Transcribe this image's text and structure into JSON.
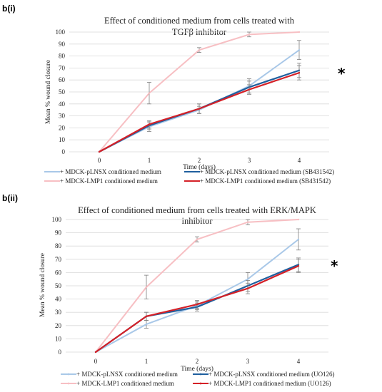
{
  "chart_data": [
    {
      "panel_label": "b(i)",
      "type": "line",
      "title": [
        "Effect of conditioned medium from cells treated with",
        "TGFβ inhibitor"
      ],
      "xlabel": "Time (days)",
      "ylabel": "Mean % wound closure",
      "x": [
        0,
        1,
        2,
        3,
        4
      ],
      "xlim": [
        0,
        4
      ],
      "ylim": [
        0,
        100
      ],
      "yticks": [
        0,
        10,
        20,
        30,
        40,
        50,
        60,
        70,
        80,
        90,
        100
      ],
      "grid": "horizontal",
      "annotation": "*",
      "legend_position": "bottom",
      "series": [
        {
          "name": "MDCK-pLNSX conditioned medium",
          "color": "#a9c8e8",
          "values": [
            0,
            21,
            35,
            55,
            85
          ],
          "errors": [
            0,
            4,
            3,
            6,
            8
          ]
        },
        {
          "name": "MDCK-LMP1 conditioned medium",
          "color": "#f7bfc3",
          "values": [
            0,
            49,
            85,
            98,
            100
          ],
          "errors": [
            0,
            9,
            2,
            2,
            0
          ]
        },
        {
          "name": "MDCK-pLNSX conditioned medium (SB431542)",
          "color": "#1f5f9e",
          "values": [
            0,
            22,
            36,
            54,
            68
          ],
          "errors": [
            0,
            3,
            4,
            5,
            6
          ]
        },
        {
          "name": "MDCK-LMP1 conditioned medium (SB431542)",
          "color": "#d42027",
          "values": [
            0,
            23,
            36,
            52,
            66
          ],
          "errors": [
            0,
            3,
            4,
            4,
            6
          ]
        }
      ]
    },
    {
      "panel_label": "b(ii)",
      "type": "line",
      "title": [
        "Effect of conditioned medium from cells treated with ERK/MAPK",
        "inhibitor"
      ],
      "xlabel": "Time (days)",
      "ylabel": "Mean % wound closure",
      "x": [
        0,
        1,
        2,
        3,
        4
      ],
      "xlim": [
        0,
        4
      ],
      "ylim": [
        0,
        100
      ],
      "yticks": [
        0,
        10,
        20,
        30,
        40,
        50,
        60,
        70,
        80,
        90,
        100
      ],
      "grid": "horizontal",
      "annotation": "*",
      "legend_position": "bottom",
      "series": [
        {
          "name": "MDCK-pLNSX conditioned medium",
          "color": "#a9c8e8",
          "values": [
            0,
            21,
            35,
            55,
            85
          ],
          "errors": [
            0,
            3,
            3,
            5,
            8
          ]
        },
        {
          "name": "MDCK-LMP1 conditioned medium",
          "color": "#f7bfc3",
          "values": [
            0,
            49,
            85,
            98,
            100
          ],
          "errors": [
            0,
            9,
            2,
            2,
            0
          ]
        },
        {
          "name": "MDCK-pLNSX conditioned medium (UO126)",
          "color": "#1f5f9e",
          "values": [
            0,
            27,
            34,
            50,
            66
          ],
          "errors": [
            0,
            3,
            3,
            4,
            5
          ]
        },
        {
          "name": "MDCK-LMP1 conditioned medium (UO126)",
          "color": "#d42027",
          "values": [
            0,
            27,
            36,
            48,
            65
          ],
          "errors": [
            0,
            3,
            3,
            4,
            5
          ]
        }
      ]
    }
  ]
}
